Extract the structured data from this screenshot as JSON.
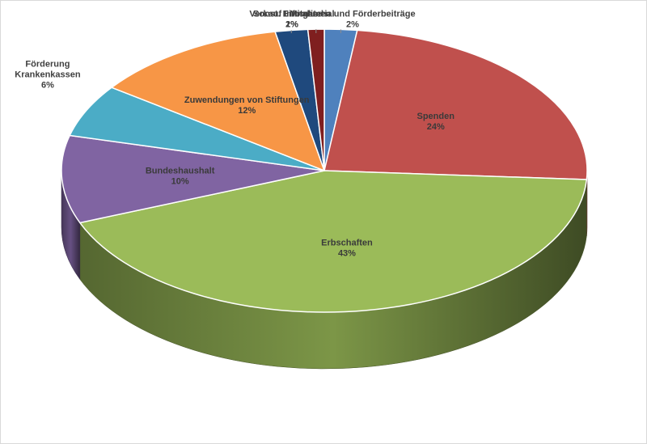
{
  "chart_data": {
    "type": "pie",
    "title": "",
    "slices": [
      {
        "label": "Mitglieds- und Förderbeiträge",
        "value": 2,
        "value_label": "2%",
        "color": "#4f81bd"
      },
      {
        "label": "Spenden",
        "value": 24,
        "value_label": "24%",
        "color": "#c0504d"
      },
      {
        "label": "Erbschaften",
        "value": 43,
        "value_label": "43%",
        "color": "#9bbb59"
      },
      {
        "label": "Bundeshaushalt",
        "value": 10,
        "value_label": "10%",
        "color": "#8064a2"
      },
      {
        "label": "Förderung Krankenkassen",
        "value": 6,
        "value_label": "6%",
        "color": "#4bacc6",
        "label_lines": [
          "Förderung",
          "Krankenkassen"
        ]
      },
      {
        "label": "Zuwendungen von Stiftungen",
        "value": 12,
        "value_label": "12%",
        "color": "#f79646"
      },
      {
        "label": "Verkauf Infomaterial",
        "value": 2,
        "value_label": "2%",
        "color": "#1f497d"
      },
      {
        "label": "Sonst. Einnahmen",
        "value": 1,
        "value_label": "1%",
        "color": "#7f1f1f"
      }
    ],
    "legend": "none",
    "style": "3d-pie"
  }
}
